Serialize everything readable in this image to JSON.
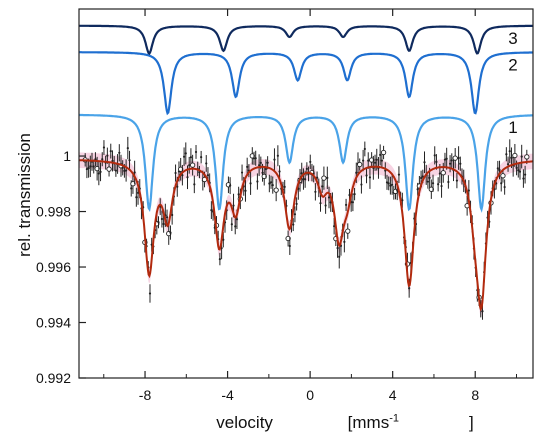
{
  "chart_data": {
    "type": "line",
    "xlabel": "velocity",
    "xlabel_unit": "[mms",
    "xlabel_unit_sup": "-1",
    "xlabel_unit_close": "]",
    "ylabel": "rel. transmission",
    "xlim": [
      -11.2,
      10.8
    ],
    "ylim": [
      0.992,
      1.0053
    ],
    "x_ticks": [
      -8,
      -4,
      0,
      4,
      8
    ],
    "x_tick_labels": [
      "-8",
      "-4",
      "0",
      "4",
      "8"
    ],
    "y_ticks": [
      0.992,
      0.994,
      0.996,
      0.998,
      1.0
    ],
    "y_tick_labels": [
      "0.992",
      "0.994",
      "0.996",
      "0.998",
      "1"
    ],
    "grid": false,
    "fit_curve": {
      "color": "#b22a0e",
      "band_color": "#f6cfe0",
      "lines": [
        {
          "position": -7.8,
          "depth": 0.004
        },
        {
          "position": -4.4,
          "depth": 0.003
        },
        {
          "position": -1.0,
          "depth": 0.0024
        },
        {
          "position": 1.4,
          "depth": 0.0026
        },
        {
          "position": 4.8,
          "depth": 0.0045
        },
        {
          "position": 8.3,
          "depth": 0.0047
        },
        {
          "position": -6.9,
          "depth": 0.002
        },
        {
          "position": -3.6,
          "depth": 0.0017
        },
        {
          "position": 0.6,
          "depth": 0.0009
        },
        {
          "position": 1.8,
          "depth": 0.001
        },
        {
          "position": 8.0,
          "depth": 0.0014
        }
      ]
    },
    "components": [
      {
        "label": "1",
        "color": "#4aa3e8",
        "offset_y": 1.0015,
        "lines": [
          -7.8,
          -4.4,
          -1.0,
          1.6,
          4.8,
          8.3
        ],
        "depths": [
          0.0034,
          0.0034,
          0.0017,
          0.0017,
          0.0034,
          0.0034
        ]
      },
      {
        "label": "2",
        "color": "#1f6fd0",
        "offset_y": 1.00375,
        "lines": [
          -6.9,
          -3.6,
          -0.6,
          1.8,
          4.8,
          8.0
        ],
        "depths": [
          0.0022,
          0.0016,
          0.001,
          0.001,
          0.0016,
          0.0022
        ]
      },
      {
        "label": "3",
        "color": "#0f2a5e",
        "offset_y": 1.0047,
        "lines": [
          -7.8,
          -4.2,
          -1.0,
          1.6,
          4.8,
          8.1
        ],
        "depths": [
          0.001,
          0.0009,
          0.0004,
          0.0004,
          0.0009,
          0.001
        ]
      }
    ],
    "data_points_color": "#222222",
    "annotations": [
      "1",
      "2",
      "3"
    ]
  }
}
